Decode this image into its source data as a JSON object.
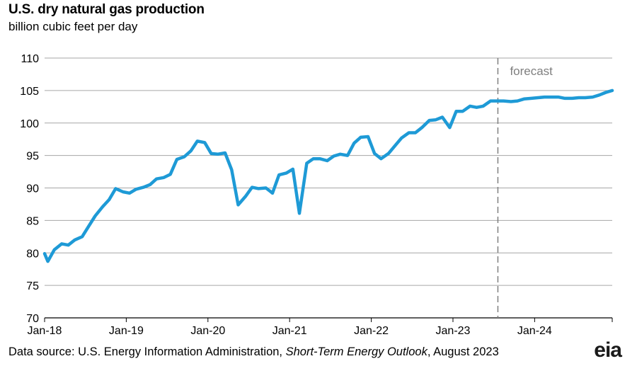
{
  "chart_data": {
    "type": "line",
    "title": "U.S. dry natural gas production",
    "subtitle": "billion cubic feet per day",
    "ylim": [
      70,
      110
    ],
    "yticks": [
      70,
      75,
      80,
      85,
      90,
      95,
      100,
      105,
      110
    ],
    "xlim": [
      2018.0,
      2024.95
    ],
    "xticks": [
      {
        "label": "Jan-18",
        "x": 2018.0
      },
      {
        "label": "Jan-19",
        "x": 2019.0
      },
      {
        "label": "Jan-20",
        "x": 2020.0
      },
      {
        "label": "Jan-21",
        "x": 2021.0
      },
      {
        "label": "Jan-22",
        "x": 2022.0
      },
      {
        "label": "Jan-23",
        "x": 2023.0
      },
      {
        "label": "Jan-24",
        "x": 2024.0
      }
    ],
    "grid": true,
    "forecast_start": 2023.55,
    "forecast_label": "forecast",
    "line_color": "#1e9ad6",
    "series": [
      {
        "values": [
          [
            2018.0,
            79.9
          ],
          [
            2018.04,
            78.7
          ],
          [
            2018.12,
            80.5
          ],
          [
            2018.21,
            81.4
          ],
          [
            2018.29,
            81.2
          ],
          [
            2018.37,
            82.0
          ],
          [
            2018.46,
            82.5
          ],
          [
            2018.54,
            84.1
          ],
          [
            2018.62,
            85.7
          ],
          [
            2018.71,
            87.1
          ],
          [
            2018.79,
            88.2
          ],
          [
            2018.87,
            89.9
          ],
          [
            2018.96,
            89.4
          ],
          [
            2019.04,
            89.2
          ],
          [
            2019.12,
            89.8
          ],
          [
            2019.21,
            90.1
          ],
          [
            2019.29,
            90.5
          ],
          [
            2019.37,
            91.4
          ],
          [
            2019.46,
            91.6
          ],
          [
            2019.54,
            92.1
          ],
          [
            2019.62,
            94.4
          ],
          [
            2019.71,
            94.8
          ],
          [
            2019.79,
            95.7
          ],
          [
            2019.87,
            97.2
          ],
          [
            2019.96,
            97.0
          ],
          [
            2020.04,
            95.3
          ],
          [
            2020.12,
            95.2
          ],
          [
            2020.21,
            95.4
          ],
          [
            2020.29,
            92.8
          ],
          [
            2020.37,
            87.4
          ],
          [
            2020.46,
            88.7
          ],
          [
            2020.54,
            90.1
          ],
          [
            2020.62,
            89.9
          ],
          [
            2020.71,
            90.0
          ],
          [
            2020.79,
            89.2
          ],
          [
            2020.87,
            92.0
          ],
          [
            2020.96,
            92.3
          ],
          [
            2021.04,
            92.9
          ],
          [
            2021.12,
            86.1
          ],
          [
            2021.21,
            93.8
          ],
          [
            2021.29,
            94.5
          ],
          [
            2021.37,
            94.5
          ],
          [
            2021.46,
            94.2
          ],
          [
            2021.54,
            94.9
          ],
          [
            2021.62,
            95.2
          ],
          [
            2021.71,
            95.0
          ],
          [
            2021.79,
            96.9
          ],
          [
            2021.87,
            97.8
          ],
          [
            2021.96,
            97.9
          ],
          [
            2022.04,
            95.3
          ],
          [
            2022.12,
            94.5
          ],
          [
            2022.21,
            95.3
          ],
          [
            2022.29,
            96.5
          ],
          [
            2022.37,
            97.7
          ],
          [
            2022.46,
            98.5
          ],
          [
            2022.54,
            98.5
          ],
          [
            2022.62,
            99.3
          ],
          [
            2022.71,
            100.4
          ],
          [
            2022.79,
            100.5
          ],
          [
            2022.87,
            100.9
          ],
          [
            2022.96,
            99.3
          ],
          [
            2023.04,
            101.8
          ],
          [
            2023.12,
            101.8
          ],
          [
            2023.21,
            102.6
          ],
          [
            2023.29,
            102.4
          ],
          [
            2023.37,
            102.6
          ],
          [
            2023.46,
            103.4
          ],
          [
            2023.54,
            103.4
          ],
          [
            2023.62,
            103.4
          ],
          [
            2023.71,
            103.3
          ],
          [
            2023.79,
            103.4
          ],
          [
            2023.87,
            103.7
          ],
          [
            2023.96,
            103.8
          ],
          [
            2024.04,
            103.9
          ],
          [
            2024.12,
            104.0
          ],
          [
            2024.21,
            104.0
          ],
          [
            2024.29,
            104.0
          ],
          [
            2024.37,
            103.8
          ],
          [
            2024.46,
            103.8
          ],
          [
            2024.54,
            103.9
          ],
          [
            2024.62,
            103.9
          ],
          [
            2024.71,
            104.0
          ],
          [
            2024.79,
            104.3
          ],
          [
            2024.87,
            104.7
          ],
          [
            2024.95,
            105.0
          ]
        ]
      }
    ]
  },
  "footer": {
    "source_prefix": "Data source: U.S. Energy Information Administration, ",
    "source_italic": "Short-Term Energy Outlook",
    "source_suffix": ", August 2023",
    "logo_text": "eia"
  }
}
